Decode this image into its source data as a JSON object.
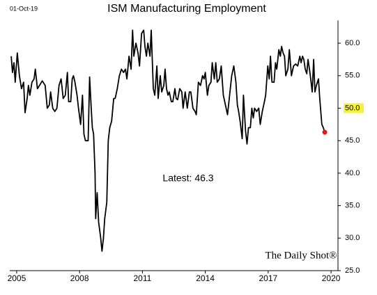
{
  "chart_data": {
    "type": "line",
    "title": "ISM Manufacturing Employment",
    "date_label": "01-Oct-19",
    "annotation": "Latest:  46.3",
    "watermark": "The Daily Shot®",
    "color": "#000000",
    "last_point_color": "#e8141c",
    "highlight_color": "#f5f03c",
    "highlighted_ytick": 50,
    "xlim": [
      2004.67,
      2020.33
    ],
    "xticks": [
      2005,
      2008,
      2011,
      2014,
      2017,
      2020
    ],
    "ylim": [
      25,
      63.5
    ],
    "yticks": [
      {
        "value": 25,
        "label": "25.0"
      },
      {
        "value": 30,
        "label": "30.0"
      },
      {
        "value": 35,
        "label": "35.0"
      },
      {
        "value": 40,
        "label": "40.0"
      },
      {
        "value": 45,
        "label": "45.0"
      },
      {
        "value": 50,
        "label": "50.0"
      },
      {
        "value": 55,
        "label": "55.0"
      },
      {
        "value": 60,
        "label": "60.0"
      }
    ],
    "x": [
      2004.74,
      2004.8,
      2004.87,
      2004.93,
      2005.03,
      2005.13,
      2005.23,
      2005.33,
      2005.4,
      2005.5,
      2005.56,
      2005.63,
      2005.73,
      2005.83,
      2005.89,
      2005.99,
      2006.09,
      2006.22,
      2006.36,
      2006.46,
      2006.56,
      2006.62,
      2006.72,
      2006.82,
      2006.92,
      2007.02,
      2007.12,
      2007.22,
      2007.32,
      2007.42,
      2007.48,
      2007.58,
      2007.65,
      2007.71,
      2007.78,
      2007.88,
      2007.95,
      2008.05,
      2008.14,
      2008.21,
      2008.28,
      2008.41,
      2008.48,
      2008.54,
      2008.61,
      2008.67,
      2008.74,
      2008.77,
      2008.84,
      2008.91,
      2009.01,
      2009.07,
      2009.14,
      2009.2,
      2009.3,
      2009.37,
      2009.44,
      2009.53,
      2009.63,
      2009.7,
      2009.8,
      2009.9,
      2010.0,
      2010.1,
      2010.19,
      2010.26,
      2010.36,
      2010.46,
      2010.53,
      2010.59,
      2010.69,
      2010.79,
      2010.86,
      2010.96,
      2011.06,
      2011.12,
      2011.19,
      2011.26,
      2011.36,
      2011.42,
      2011.52,
      2011.59,
      2011.69,
      2011.75,
      2011.85,
      2011.92,
      2012.02,
      2012.08,
      2012.15,
      2012.22,
      2012.28,
      2012.38,
      2012.45,
      2012.55,
      2012.61,
      2012.68,
      2012.78,
      2012.88,
      2012.94,
      2013.04,
      2013.14,
      2013.24,
      2013.31,
      2013.41,
      2013.51,
      2013.57,
      2013.67,
      2013.77,
      2013.87,
      2013.94,
      2014.0,
      2014.1,
      2014.17,
      2014.27,
      2014.33,
      2014.43,
      2014.5,
      2014.57,
      2014.67,
      2014.76,
      2014.86,
      2014.96,
      2015.06,
      2015.16,
      2015.26,
      2015.36,
      2015.46,
      2015.53,
      2015.59,
      2015.66,
      2015.76,
      2015.82,
      2015.92,
      2015.99,
      2016.06,
      2016.15,
      2016.22,
      2016.29,
      2016.35,
      2016.45,
      2016.55,
      2016.62,
      2016.72,
      2016.82,
      2016.88,
      2016.98,
      2017.05,
      2017.11,
      2017.18,
      2017.28,
      2017.35,
      2017.41,
      2017.51,
      2017.58,
      2017.64,
      2017.71,
      2017.78,
      2017.84,
      2017.94,
      2018.01,
      2018.11,
      2018.21,
      2018.31,
      2018.41,
      2018.51,
      2018.57,
      2018.64,
      2018.7,
      2018.77,
      2018.84,
      2018.9,
      2018.97,
      2019.03,
      2019.1,
      2019.17,
      2019.23,
      2019.3,
      2019.4,
      2019.46,
      2019.56,
      2019.63,
      2019.7
    ],
    "values": [
      58,
      55.5,
      57,
      54,
      58.5,
      55,
      53,
      54,
      49.3,
      51.5,
      53.5,
      52,
      54,
      54.5,
      56,
      53,
      53.5,
      54.2,
      53.5,
      50,
      50.5,
      52.5,
      50,
      49.5,
      50,
      53.5,
      54.5,
      51.5,
      52,
      55.5,
      51,
      51,
      54.5,
      55,
      54,
      52,
      50,
      47.5,
      52,
      46,
      45,
      45,
      54.8,
      51,
      47,
      46,
      40,
      33,
      37,
      32.5,
      30,
      28,
      30,
      33,
      35.5,
      45,
      47,
      48,
      51.5,
      51.5,
      53,
      55,
      56,
      55.5,
      56,
      54.5,
      58,
      56,
      62,
      58,
      60,
      58.5,
      56.5,
      61.5,
      62,
      59.5,
      58,
      60,
      58,
      62,
      53,
      52,
      56.5,
      51.5,
      55,
      52.5,
      53.5,
      56,
      53,
      52,
      52.5,
      51,
      51,
      53,
      51.5,
      51.3,
      53,
      52.5,
      50,
      52.5,
      50,
      52.5,
      52.5,
      50,
      49.5,
      49,
      54,
      53.5,
      55,
      54.5,
      55.5,
      52,
      53.5,
      54,
      57,
      54.5,
      57,
      54,
      54.5,
      56.5,
      52,
      50.5,
      49,
      52,
      55,
      56.5,
      54,
      50.5,
      49.5,
      48,
      45.3,
      52,
      46.5,
      44.5,
      47,
      47,
      50,
      48.5,
      50,
      49.5,
      50,
      47.5,
      49.5,
      51,
      52,
      56.5,
      54.5,
      58,
      54,
      54,
      57,
      56,
      59,
      58,
      59.5,
      58.5,
      58,
      55,
      56,
      59,
      55,
      56.5,
      56.8,
      56.5,
      58,
      57,
      58,
      57.5,
      56,
      55.3,
      57.5,
      56,
      54.5,
      52.5,
      57.5,
      52.5,
      53.5,
      54.5,
      51.5,
      47.5,
      47,
      46.3
    ]
  }
}
